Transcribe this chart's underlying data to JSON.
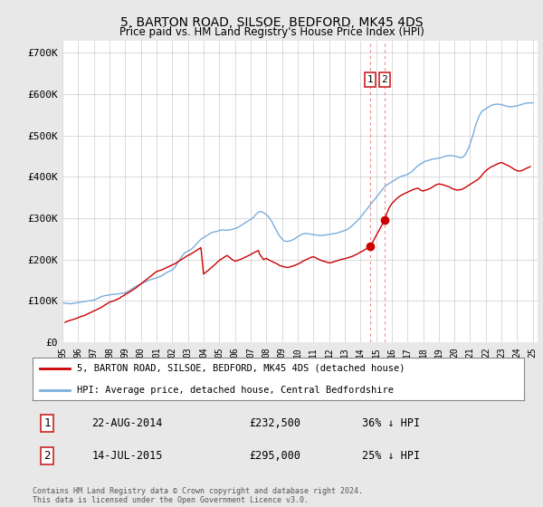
{
  "title": "5, BARTON ROAD, SILSOE, BEDFORD, MK45 4DS",
  "subtitle": "Price paid vs. HM Land Registry's House Price Index (HPI)",
  "title_fontsize": 10,
  "subtitle_fontsize": 9,
  "ylabel_ticks": [
    "£0",
    "£100K",
    "£200K",
    "£300K",
    "£400K",
    "£500K",
    "£600K",
    "£700K"
  ],
  "ytick_values": [
    0,
    100000,
    200000,
    300000,
    400000,
    500000,
    600000,
    700000
  ],
  "ylim": [
    0,
    730000
  ],
  "xlim_start": 1995.0,
  "xlim_end": 2025.3,
  "background_color": "#e8e8e8",
  "plot_bg_color": "#ffffff",
  "grid_color": "#cccccc",
  "hpi_color": "#7aaddc",
  "price_color": "#cc0000",
  "transaction1_price": 232500,
  "transaction1_date": "22-AUG-2014",
  "transaction2_price": 295000,
  "transaction2_date": "14-JUL-2015",
  "transaction1_x": 2014.64,
  "transaction2_x": 2015.54,
  "transaction1_pct": "36%",
  "transaction2_pct": "25%",
  "legend_label1": "5, BARTON ROAD, SILSOE, BEDFORD, MK45 4DS (detached house)",
  "legend_label2": "HPI: Average price, detached house, Central Bedfordshire",
  "footer": "Contains HM Land Registry data © Crown copyright and database right 2024.\nThis data is licensed under the Open Government Licence v3.0.",
  "hpi_data_x": [
    1995.08,
    1995.17,
    1995.25,
    1995.33,
    1995.42,
    1995.5,
    1995.58,
    1995.67,
    1995.75,
    1995.83,
    1995.92,
    1996.0,
    1996.08,
    1996.17,
    1996.25,
    1996.33,
    1996.42,
    1996.5,
    1996.58,
    1996.67,
    1996.75,
    1996.83,
    1996.92,
    1997.0,
    1997.08,
    1997.17,
    1997.25,
    1997.33,
    1997.42,
    1997.5,
    1997.58,
    1997.67,
    1997.75,
    1997.83,
    1997.92,
    1998.0,
    1998.08,
    1998.17,
    1998.25,
    1998.33,
    1998.42,
    1998.5,
    1998.58,
    1998.67,
    1998.75,
    1998.83,
    1998.92,
    1999.0,
    1999.08,
    1999.17,
    1999.25,
    1999.33,
    1999.42,
    1999.5,
    1999.58,
    1999.67,
    1999.75,
    1999.83,
    1999.92,
    2000.0,
    2000.08,
    2000.17,
    2000.25,
    2000.33,
    2000.42,
    2000.5,
    2000.58,
    2000.67,
    2000.75,
    2000.83,
    2000.92,
    2001.0,
    2001.08,
    2001.17,
    2001.25,
    2001.33,
    2001.42,
    2001.5,
    2001.58,
    2001.67,
    2001.75,
    2001.83,
    2001.92,
    2002.0,
    2002.08,
    2002.17,
    2002.25,
    2002.33,
    2002.42,
    2002.5,
    2002.58,
    2002.67,
    2002.75,
    2002.83,
    2002.92,
    2003.0,
    2003.08,
    2003.17,
    2003.25,
    2003.33,
    2003.42,
    2003.5,
    2003.58,
    2003.67,
    2003.75,
    2003.83,
    2003.92,
    2004.0,
    2004.08,
    2004.17,
    2004.25,
    2004.33,
    2004.42,
    2004.5,
    2004.58,
    2004.67,
    2004.75,
    2004.83,
    2004.92,
    2005.0,
    2005.08,
    2005.17,
    2005.25,
    2005.33,
    2005.42,
    2005.5,
    2005.58,
    2005.67,
    2005.75,
    2005.83,
    2005.92,
    2006.0,
    2006.08,
    2006.17,
    2006.25,
    2006.33,
    2006.42,
    2006.5,
    2006.58,
    2006.67,
    2006.75,
    2006.83,
    2006.92,
    2007.0,
    2007.08,
    2007.17,
    2007.25,
    2007.33,
    2007.42,
    2007.5,
    2007.58,
    2007.67,
    2007.75,
    2007.83,
    2007.92,
    2008.0,
    2008.08,
    2008.17,
    2008.25,
    2008.33,
    2008.42,
    2008.5,
    2008.58,
    2008.67,
    2008.75,
    2008.83,
    2008.92,
    2009.0,
    2009.08,
    2009.17,
    2009.25,
    2009.33,
    2009.42,
    2009.5,
    2009.58,
    2009.67,
    2009.75,
    2009.83,
    2009.92,
    2010.0,
    2010.08,
    2010.17,
    2010.25,
    2010.33,
    2010.42,
    2010.5,
    2010.58,
    2010.67,
    2010.75,
    2010.83,
    2010.92,
    2011.0,
    2011.08,
    2011.17,
    2011.25,
    2011.33,
    2011.42,
    2011.5,
    2011.58,
    2011.67,
    2011.75,
    2011.83,
    2011.92,
    2012.0,
    2012.08,
    2012.17,
    2012.25,
    2012.33,
    2012.42,
    2012.5,
    2012.58,
    2012.67,
    2012.75,
    2012.83,
    2012.92,
    2013.0,
    2013.08,
    2013.17,
    2013.25,
    2013.33,
    2013.42,
    2013.5,
    2013.58,
    2013.67,
    2013.75,
    2013.83,
    2013.92,
    2014.0,
    2014.08,
    2014.17,
    2014.25,
    2014.33,
    2014.42,
    2014.5,
    2014.58,
    2014.67,
    2014.75,
    2014.83,
    2014.92,
    2015.0,
    2015.08,
    2015.17,
    2015.25,
    2015.33,
    2015.42,
    2015.5,
    2015.58,
    2015.67,
    2015.75,
    2015.83,
    2015.92,
    2016.0,
    2016.08,
    2016.17,
    2016.25,
    2016.33,
    2016.42,
    2016.5,
    2016.58,
    2016.67,
    2016.75,
    2016.83,
    2016.92,
    2017.0,
    2017.08,
    2017.17,
    2017.25,
    2017.33,
    2017.42,
    2017.5,
    2017.58,
    2017.67,
    2017.75,
    2017.83,
    2017.92,
    2018.0,
    2018.08,
    2018.17,
    2018.25,
    2018.33,
    2018.42,
    2018.5,
    2018.58,
    2018.67,
    2018.75,
    2018.83,
    2018.92,
    2019.0,
    2019.08,
    2019.17,
    2019.25,
    2019.33,
    2019.42,
    2019.5,
    2019.58,
    2019.67,
    2019.75,
    2019.83,
    2019.92,
    2020.0,
    2020.08,
    2020.17,
    2020.25,
    2020.33,
    2020.42,
    2020.5,
    2020.58,
    2020.67,
    2020.75,
    2020.83,
    2020.92,
    2021.0,
    2021.08,
    2021.17,
    2021.25,
    2021.33,
    2021.42,
    2021.5,
    2021.58,
    2021.67,
    2021.75,
    2021.83,
    2021.92,
    2022.0,
    2022.08,
    2022.17,
    2022.25,
    2022.33,
    2022.42,
    2022.5,
    2022.58,
    2022.67,
    2022.75,
    2022.83,
    2022.92,
    2023.0,
    2023.08,
    2023.17,
    2023.25,
    2023.33,
    2023.42,
    2023.5,
    2023.58,
    2023.67,
    2023.75,
    2023.83,
    2023.92,
    2024.0,
    2024.08,
    2024.17,
    2024.25,
    2024.33,
    2024.42,
    2024.5,
    2024.58,
    2024.67,
    2024.75,
    2024.83,
    2024.92,
    2025.0
  ],
  "hpi_data_y": [
    95000,
    94500,
    94000,
    93500,
    93200,
    93000,
    93500,
    94000,
    94500,
    95000,
    95500,
    96000,
    96500,
    97000,
    97500,
    98000,
    98500,
    99000,
    99500,
    100000,
    100500,
    101000,
    101500,
    102000,
    103000,
    104500,
    106000,
    107500,
    109000,
    110500,
    111500,
    112500,
    113000,
    113500,
    114000,
    114500,
    115000,
    115500,
    116000,
    116200,
    116500,
    116800,
    117000,
    117500,
    118000,
    118500,
    119000,
    120000,
    121000,
    122500,
    124000,
    126000,
    128500,
    131000,
    133000,
    135000,
    136500,
    138000,
    139500,
    141000,
    142500,
    144000,
    145500,
    147000,
    148500,
    150000,
    151000,
    152000,
    153000,
    154000,
    155000,
    156000,
    157000,
    158000,
    159500,
    161000,
    163000,
    165000,
    167000,
    169000,
    170500,
    172000,
    173500,
    175000,
    177000,
    181000,
    186000,
    191000,
    196000,
    201000,
    206000,
    211000,
    214000,
    217000,
    219000,
    221000,
    222000,
    224000,
    226000,
    229000,
    232000,
    236000,
    239000,
    243000,
    246000,
    249000,
    251000,
    253000,
    255000,
    257000,
    259000,
    261000,
    263000,
    265000,
    266000,
    267000,
    267500,
    268000,
    269000,
    270000,
    271000,
    271500,
    272000,
    271500,
    271000,
    271000,
    271500,
    272000,
    272500,
    273000,
    274000,
    275000,
    276000,
    277500,
    279000,
    281000,
    283000,
    285500,
    287500,
    289500,
    291500,
    293500,
    295000,
    297000,
    299000,
    302000,
    305000,
    309000,
    312000,
    315000,
    316000,
    316000,
    315000,
    313000,
    311000,
    309000,
    306000,
    302000,
    298000,
    293000,
    287000,
    281000,
    275000,
    269000,
    263000,
    258000,
    254000,
    250000,
    247000,
    245000,
    244000,
    244000,
    244500,
    245000,
    246000,
    247500,
    249000,
    251000,
    253000,
    255000,
    257000,
    259000,
    261000,
    262000,
    263000,
    263500,
    263000,
    262500,
    262000,
    261500,
    261000,
    260500,
    260000,
    259500,
    259000,
    258500,
    258500,
    258500,
    258500,
    259000,
    259500,
    260000,
    260500,
    261000,
    261500,
    262000,
    262500,
    263000,
    263500,
    264000,
    265000,
    266000,
    267000,
    268000,
    269000,
    270000,
    271500,
    273000,
    275000,
    277500,
    280000,
    283000,
    286000,
    289000,
    292000,
    295000,
    298000,
    302000,
    306000,
    310000,
    314000,
    318000,
    322000,
    326000,
    330000,
    334000,
    338000,
    342000,
    346000,
    350000,
    354000,
    358000,
    362000,
    366000,
    370000,
    374000,
    377000,
    380000,
    382000,
    384000,
    386000,
    388000,
    390000,
    392000,
    394000,
    396000,
    398000,
    400000,
    401000,
    402000,
    403000,
    404000,
    405000,
    406000,
    408000,
    410000,
    412000,
    415000,
    418000,
    421000,
    424000,
    427000,
    429000,
    431000,
    433000,
    435000,
    437000,
    438000,
    439000,
    440000,
    441000,
    442000,
    443000,
    443500,
    444000,
    444500,
    445000,
    445500,
    446000,
    447000,
    448000,
    449000,
    450000,
    451000,
    451500,
    452000,
    452000,
    451500,
    451000,
    450500,
    450000,
    449000,
    448000,
    447000,
    447000,
    447500,
    449000,
    453000,
    458000,
    465000,
    472000,
    480000,
    490000,
    500000,
    511000,
    522000,
    532000,
    541000,
    548000,
    554000,
    558000,
    561000,
    563000,
    565000,
    567000,
    569000,
    571000,
    573000,
    574000,
    575000,
    575500,
    576000,
    576000,
    576000,
    575500,
    575000,
    574000,
    573000,
    572000,
    571000,
    570500,
    570000,
    570000,
    570000,
    570500,
    571000,
    571500,
    572000,
    573000,
    574000,
    575000,
    576000,
    577000,
    578000,
    578500,
    579000,
    579000,
    579000,
    579000,
    579500
  ],
  "price_data_x": [
    1995.17,
    1995.25,
    1995.42,
    1995.67,
    1995.83,
    1996.0,
    1996.08,
    1996.25,
    1996.42,
    1996.58,
    1996.75,
    1996.92,
    1997.08,
    1997.25,
    1997.42,
    1997.58,
    1997.75,
    1997.92,
    1998.0,
    1998.17,
    1998.33,
    1998.5,
    1998.67,
    1998.75,
    1998.92,
    1999.0,
    1999.17,
    1999.33,
    1999.5,
    1999.67,
    1999.83,
    2000.0,
    2000.17,
    2000.33,
    2000.5,
    2000.67,
    2000.83,
    2001.0,
    2001.17,
    2001.33,
    2001.5,
    2001.67,
    2001.83,
    2002.0,
    2002.17,
    2002.33,
    2002.5,
    2002.67,
    2002.83,
    2003.0,
    2003.17,
    2003.33,
    2003.5,
    2003.67,
    2003.83,
    2004.0,
    2004.17,
    2004.33,
    2004.5,
    2004.67,
    2004.83,
    2005.0,
    2005.17,
    2005.33,
    2005.5,
    2005.67,
    2005.83,
    2006.0,
    2006.17,
    2006.33,
    2006.5,
    2006.67,
    2006.83,
    2007.0,
    2007.17,
    2007.33,
    2007.5,
    2007.58,
    2007.67,
    2007.75,
    2007.83,
    2008.0,
    2008.17,
    2008.33,
    2008.5,
    2008.67,
    2008.75,
    2008.83,
    2009.0,
    2009.17,
    2009.33,
    2009.5,
    2009.67,
    2009.83,
    2010.0,
    2010.17,
    2010.33,
    2010.5,
    2010.67,
    2010.83,
    2011.0,
    2011.17,
    2011.33,
    2011.5,
    2011.67,
    2011.83,
    2012.0,
    2012.17,
    2012.33,
    2012.5,
    2012.67,
    2012.83,
    2013.0,
    2013.17,
    2013.33,
    2013.5,
    2013.67,
    2013.83,
    2014.0,
    2014.17,
    2014.33,
    2014.5,
    2014.64,
    2015.54,
    2015.67,
    2015.83,
    2016.0,
    2016.17,
    2016.33,
    2016.5,
    2016.67,
    2016.83,
    2017.0,
    2017.17,
    2017.33,
    2017.5,
    2017.67,
    2017.75,
    2017.83,
    2018.0,
    2018.17,
    2018.33,
    2018.5,
    2018.67,
    2018.83,
    2019.0,
    2019.17,
    2019.33,
    2019.5,
    2019.67,
    2019.75,
    2019.83,
    2020.0,
    2020.17,
    2020.5,
    2020.67,
    2020.83,
    2021.0,
    2021.17,
    2021.33,
    2021.5,
    2021.67,
    2021.83,
    2022.0,
    2022.17,
    2022.33,
    2022.5,
    2022.67,
    2022.83,
    2023.0,
    2023.17,
    2023.33,
    2023.5,
    2023.67,
    2023.83,
    2024.0,
    2024.17,
    2024.33,
    2024.5,
    2024.67,
    2024.83
  ],
  "price_data_y": [
    48000,
    50000,
    52000,
    55000,
    57000,
    59000,
    61000,
    63000,
    65000,
    68000,
    71000,
    74000,
    77000,
    80000,
    83000,
    87000,
    91000,
    95000,
    97000,
    99000,
    101000,
    104000,
    107000,
    110000,
    113000,
    116000,
    119000,
    123000,
    127000,
    131000,
    136000,
    141000,
    146000,
    151000,
    156000,
    161000,
    166000,
    171000,
    173000,
    175000,
    178000,
    181000,
    184000,
    187000,
    190000,
    194000,
    198000,
    202000,
    206000,
    210000,
    213000,
    217000,
    221000,
    225000,
    229000,
    165000,
    170000,
    175000,
    181000,
    186000,
    192000,
    198000,
    202000,
    206000,
    210000,
    205000,
    200000,
    196000,
    198000,
    200000,
    203000,
    206000,
    209000,
    212000,
    216000,
    219000,
    222000,
    213000,
    208000,
    204000,
    200000,
    203000,
    199000,
    196000,
    193000,
    190000,
    188000,
    186000,
    184000,
    182000,
    181000,
    182000,
    184000,
    186000,
    189000,
    192000,
    196000,
    199000,
    202000,
    205000,
    207000,
    204000,
    201000,
    198000,
    196000,
    194000,
    192000,
    193000,
    195000,
    197000,
    199000,
    201000,
    202000,
    204000,
    206000,
    208000,
    211000,
    214000,
    218000,
    221000,
    225000,
    229000,
    232500,
    295000,
    310000,
    325000,
    335000,
    342000,
    348000,
    353000,
    357000,
    360000,
    363000,
    366000,
    369000,
    371000,
    373000,
    371000,
    368000,
    366000,
    368000,
    370000,
    373000,
    377000,
    381000,
    383000,
    382000,
    380000,
    378000,
    376000,
    374000,
    372000,
    370000,
    368000,
    370000,
    374000,
    378000,
    382000,
    386000,
    390000,
    394000,
    400000,
    408000,
    415000,
    420000,
    424000,
    427000,
    430000,
    433000,
    435000,
    432000,
    429000,
    426000,
    422000,
    418000,
    415000,
    414000,
    416000,
    419000,
    422000,
    425000
  ]
}
